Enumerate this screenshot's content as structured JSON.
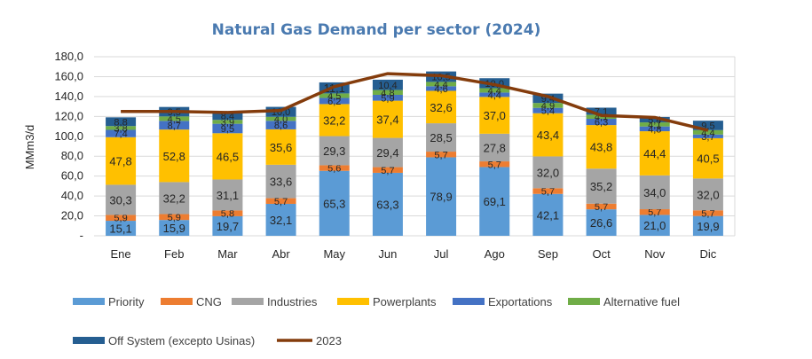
{
  "chart_data": {
    "type": "bar",
    "stacked": true,
    "title": "Natural Gas Demand per sector (2024)",
    "ylabel": "MMm3/d",
    "xlabel": "",
    "ylim": [
      0,
      180
    ],
    "yticks": [
      "-",
      "20,0",
      "40,0",
      "60,0",
      "80,0",
      "100,0",
      "120,0",
      "140,0",
      "160,0",
      "180,0"
    ],
    "grid": true,
    "legend_position": "bottom",
    "categories": [
      "Ene",
      "Feb",
      "Mar",
      "Abr",
      "May",
      "Jun",
      "Jul",
      "Ago",
      "Sep",
      "Oct",
      "Nov",
      "Dic"
    ],
    "series": [
      {
        "name": "Priority",
        "color": "#5b9bd5",
        "values": [
          15.1,
          15.9,
          19.7,
          32.1,
          65.3,
          63.3,
          78.9,
          69.1,
          42.1,
          26.6,
          21.0,
          19.9
        ],
        "labels": [
          "15,1",
          "15,9",
          "19,7",
          "32,1",
          "65,3",
          "63,3",
          "78,9",
          "69,1",
          "42,1",
          "26,6",
          "21,0",
          "19,9"
        ]
      },
      {
        "name": "CNG",
        "color": "#ed7d31",
        "values": [
          5.9,
          5.9,
          5.8,
          5.7,
          5.6,
          5.7,
          5.7,
          5.7,
          5.7,
          5.7,
          5.7,
          5.7
        ],
        "labels": [
          "5,9",
          "5,9",
          "5,8",
          "5,7",
          "5,6",
          "5,7",
          "5,7",
          "5,7",
          "5,7",
          "5,7",
          "5,7",
          "5,7"
        ]
      },
      {
        "name": "Industries",
        "color": "#a5a5a5",
        "values": [
          30.3,
          32.2,
          31.1,
          33.6,
          29.3,
          29.4,
          28.5,
          27.8,
          32.0,
          35.2,
          34.0,
          32.0
        ],
        "labels": [
          "30,3",
          "32,2",
          "31,1",
          "33,6",
          "29,3",
          "29,4",
          "28,5",
          "27,8",
          "32,0",
          "35,2",
          "34,0",
          "32,0"
        ]
      },
      {
        "name": "Powerplants",
        "color": "#ffc000",
        "values": [
          47.8,
          52.8,
          46.5,
          35.6,
          32.2,
          37.4,
          32.6,
          37.0,
          43.4,
          43.8,
          44.4,
          40.5
        ],
        "labels": [
          "47,8",
          "52,8",
          "46,5",
          "35,6",
          "32,2",
          "37,4",
          "32,6",
          "37,0",
          "43,4",
          "43,8",
          "44,4",
          "40,5"
        ]
      },
      {
        "name": "Exportations",
        "color": "#4472c4",
        "values": [
          7.4,
          8.7,
          9.5,
          8.6,
          6.2,
          5.9,
          4.6,
          4.4,
          5.4,
          6.3,
          4.8,
          3.7
        ],
        "labels": [
          "7,4",
          "8,7",
          "9,5",
          "8,6",
          "6,2",
          "5,9",
          "4,6",
          "4,4",
          "5,4",
          "6,3",
          "4,8",
          "3,7"
        ]
      },
      {
        "name": "Alternative fuel",
        "color": "#70ad47",
        "values": [
          3.8,
          4.5,
          3.9,
          4.0,
          4.5,
          4.8,
          4.4,
          4.4,
          4.9,
          4.1,
          4.1,
          4.4
        ],
        "labels": [
          "3,8",
          "4,5",
          "3,9",
          "4,0",
          "4,5",
          "4,8",
          "4,4",
          "4,4",
          "4,9",
          "4,1",
          "4,1",
          "4,4"
        ]
      },
      {
        "name": "Off System (excepto Usinas)",
        "color": "#255e91",
        "values": [
          8.8,
          9.5,
          8.4,
          10.0,
          11.1,
          10.4,
          10.5,
          10.0,
          9.4,
          7.1,
          5.4,
          9.5
        ],
        "labels": [
          "8,8",
          "9,5",
          "8,4",
          "10,0",
          "11,1",
          "10,4",
          "10,5",
          "10,0",
          "9,4",
          "7,1",
          "5,4",
          "9,5"
        ]
      }
    ],
    "line_series": {
      "name": "2023",
      "color": "#843c0c",
      "values": [
        125,
        125,
        124,
        126,
        150,
        163,
        161,
        152,
        140,
        121,
        119,
        106
      ]
    }
  }
}
